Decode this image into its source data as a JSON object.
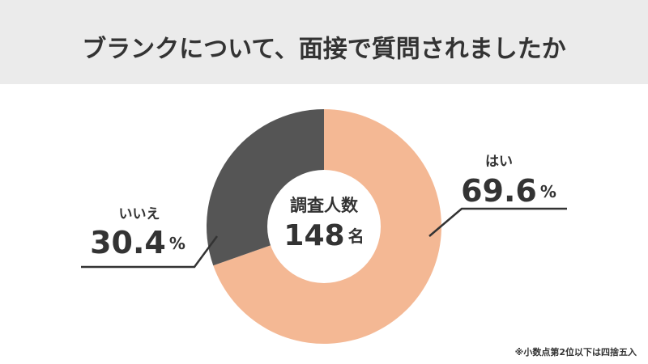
{
  "chart_data": {
    "type": "donut",
    "title": "ブランクについて、面接で質問されましたか",
    "categories": [
      "はい",
      "いいえ"
    ],
    "values": [
      69.6,
      30.4
    ],
    "unit": "%",
    "colors": [
      "#f4b894",
      "#555555"
    ],
    "center_label": "調査人数",
    "sample_size": 148,
    "sample_unit": "名",
    "footnote": "※小数点第2位以下は四捨五入"
  }
}
